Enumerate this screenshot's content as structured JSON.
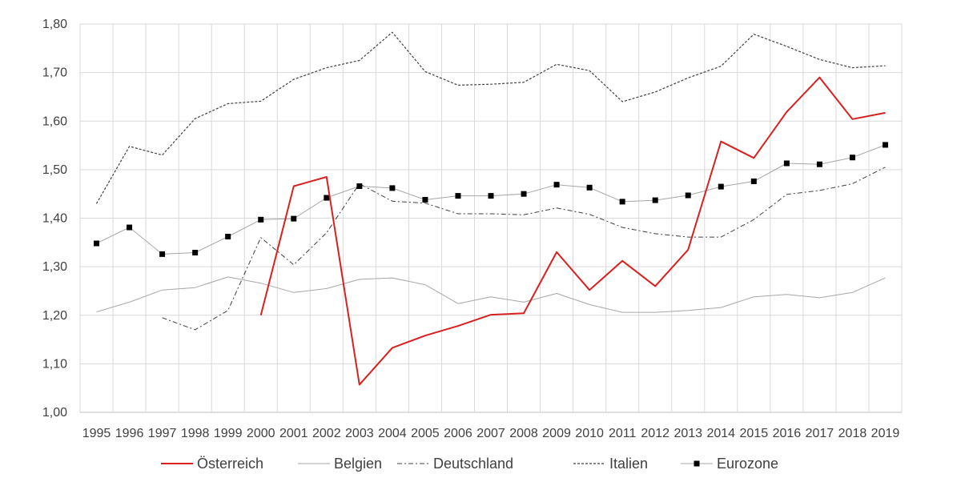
{
  "chart_data": {
    "type": "line",
    "title": "",
    "xlabel": "",
    "ylabel": "",
    "ylim": [
      1.0,
      1.8
    ],
    "y_ticks": [
      "1,00",
      "1,10",
      "1,20",
      "1,30",
      "1,40",
      "1,50",
      "1,60",
      "1,70",
      "1,80"
    ],
    "grid": true,
    "legend_position": "bottom",
    "categories": [
      "1995",
      "1996",
      "1997",
      "1998",
      "1999",
      "2000",
      "2001",
      "2002",
      "2003",
      "2004",
      "2005",
      "2006",
      "2007",
      "2008",
      "2009",
      "2010",
      "2011",
      "2012",
      "2013",
      "2014",
      "2015",
      "2016",
      "2017",
      "2018",
      "2019"
    ],
    "series": [
      {
        "name": "Österreich",
        "style": "solid",
        "color": "#d9201f",
        "values": [
          null,
          null,
          null,
          null,
          null,
          1.2,
          1.466,
          1.485,
          1.057,
          1.133,
          1.158,
          1.178,
          1.201,
          1.204,
          1.33,
          1.252,
          1.312,
          1.26,
          1.335,
          1.558,
          1.524,
          1.619,
          1.69,
          1.604,
          1.617
        ]
      },
      {
        "name": "Belgien",
        "style": "thin",
        "color": "#a6a6a6",
        "values": [
          1.207,
          1.227,
          1.252,
          1.257,
          1.279,
          1.266,
          1.247,
          1.255,
          1.274,
          1.277,
          1.263,
          1.224,
          1.238,
          1.227,
          1.245,
          1.222,
          1.206,
          1.206,
          1.21,
          1.216,
          1.238,
          1.243,
          1.236,
          1.247,
          1.277
        ]
      },
      {
        "name": "Deutschland",
        "style": "dashdot",
        "color": "#404040",
        "values": [
          null,
          null,
          1.195,
          1.17,
          1.21,
          1.36,
          1.304,
          1.37,
          1.471,
          1.435,
          1.431,
          1.409,
          1.409,
          1.407,
          1.421,
          1.408,
          1.381,
          1.368,
          1.361,
          1.361,
          1.397,
          1.449,
          1.457,
          1.471,
          1.505
        ]
      },
      {
        "name": "Italien",
        "style": "dotted",
        "color": "#404040",
        "values": [
          1.43,
          1.548,
          1.53,
          1.605,
          1.636,
          1.641,
          1.686,
          1.71,
          1.725,
          1.783,
          1.702,
          1.674,
          1.676,
          1.68,
          1.717,
          1.704,
          1.64,
          1.66,
          1.689,
          1.713,
          1.779,
          1.754,
          1.727,
          1.71,
          1.714
        ]
      },
      {
        "name": "Eurozone",
        "style": "marker",
        "color": "#000000",
        "values": [
          1.348,
          1.381,
          1.326,
          1.329,
          1.362,
          1.397,
          1.399,
          1.442,
          1.466,
          1.462,
          1.438,
          1.446,
          1.446,
          1.45,
          1.469,
          1.463,
          1.434,
          1.437,
          1.447,
          1.465,
          1.476,
          1.513,
          1.511,
          1.525,
          1.551
        ]
      }
    ]
  }
}
